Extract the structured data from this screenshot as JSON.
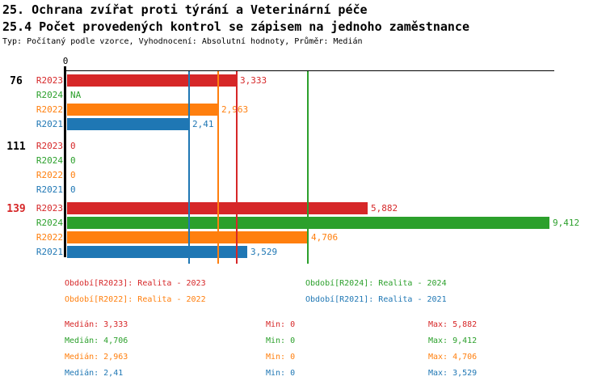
{
  "page": {
    "title": "25. Ochrana zvířat proti týrání a Veterinární péče",
    "subtitle": "25.4 Počet provedených kontrol se zápisem na jednoho zaměstnance",
    "meta": "Typ: Počítaný podle vzorce, Vyhodnocení: Absolutní hodnoty, Průměr: Medián"
  },
  "colors": {
    "r2023": "#d62728",
    "r2024": "#2ca02c",
    "r2022": "#ff7f0e",
    "r2021": "#1f77b4",
    "axis": "#000000"
  },
  "chart_data": {
    "type": "bar",
    "orientation": "horizontal",
    "title": "25. Ochrana zvířat proti týrání a Veterinární péče",
    "subtitle": "25.4 Počet provedených kontrol se zápisem na jednoho zaměstnance",
    "x_axis": {
      "tick_label": "0",
      "min": 0,
      "max_hint": 9.412
    },
    "series_order": [
      "R2023",
      "R2024",
      "R2022",
      "R2021"
    ],
    "groups": [
      {
        "label": "76",
        "label_color": "#000000",
        "rows": [
          {
            "period": "R2023",
            "color": "#d62728",
            "value": 3.333,
            "value_label": "3,333"
          },
          {
            "period": "R2024",
            "color": "#2ca02c",
            "value": null,
            "value_label": "NA"
          },
          {
            "period": "R2022",
            "color": "#ff7f0e",
            "value": 2.963,
            "value_label": "2,963"
          },
          {
            "period": "R2021",
            "color": "#1f77b4",
            "value": 2.41,
            "value_label": "2,41"
          }
        ]
      },
      {
        "label": "111",
        "label_color": "#000000",
        "rows": [
          {
            "period": "R2023",
            "color": "#d62728",
            "value": 0,
            "value_label": "0"
          },
          {
            "period": "R2024",
            "color": "#2ca02c",
            "value": 0,
            "value_label": "0"
          },
          {
            "period": "R2022",
            "color": "#ff7f0e",
            "value": 0,
            "value_label": "0"
          },
          {
            "period": "R2021",
            "color": "#1f77b4",
            "value": 0,
            "value_label": "0"
          }
        ]
      },
      {
        "label": "139",
        "label_color": "#d62728",
        "rows": [
          {
            "period": "R2023",
            "color": "#d62728",
            "value": 5.882,
            "value_label": "5,882"
          },
          {
            "period": "R2024",
            "color": "#2ca02c",
            "value": 9.412,
            "value_label": "9,412"
          },
          {
            "period": "R2022",
            "color": "#ff7f0e",
            "value": 4.706,
            "value_label": "4,706"
          },
          {
            "period": "R2021",
            "color": "#1f77b4",
            "value": 3.529,
            "value_label": "3,529"
          }
        ]
      }
    ],
    "median_lines": [
      {
        "series": "R2021",
        "color": "#1f77b4",
        "value": 2.41
      },
      {
        "series": "R2022",
        "color": "#ff7f0e",
        "value": 2.963
      },
      {
        "series": "R2023",
        "color": "#d62728",
        "value": 3.333
      },
      {
        "series": "R2024",
        "color": "#2ca02c",
        "value": 4.706
      }
    ],
    "legend": [
      {
        "text": "Období[R2023]: Realita - 2023",
        "color": "#d62728"
      },
      {
        "text": "Období[R2024]: Realita - 2024",
        "color": "#2ca02c"
      },
      {
        "text": "Období[R2022]: Realita - 2022",
        "color": "#ff7f0e"
      },
      {
        "text": "Období[R2021]: Realita - 2021",
        "color": "#1f77b4"
      }
    ],
    "stats": [
      {
        "color": "#d62728",
        "median": "Medián: 3,333",
        "min": "Min: 0",
        "max": "Max: 5,882"
      },
      {
        "color": "#2ca02c",
        "median": "Medián: 4,706",
        "min": "Min: 0",
        "max": "Max: 9,412"
      },
      {
        "color": "#ff7f0e",
        "median": "Medián: 2,963",
        "min": "Min: 0",
        "max": "Max: 4,706"
      },
      {
        "color": "#1f77b4",
        "median": "Medián: 2,41",
        "min": "Min: 0",
        "max": "Max: 3,529"
      }
    ]
  }
}
